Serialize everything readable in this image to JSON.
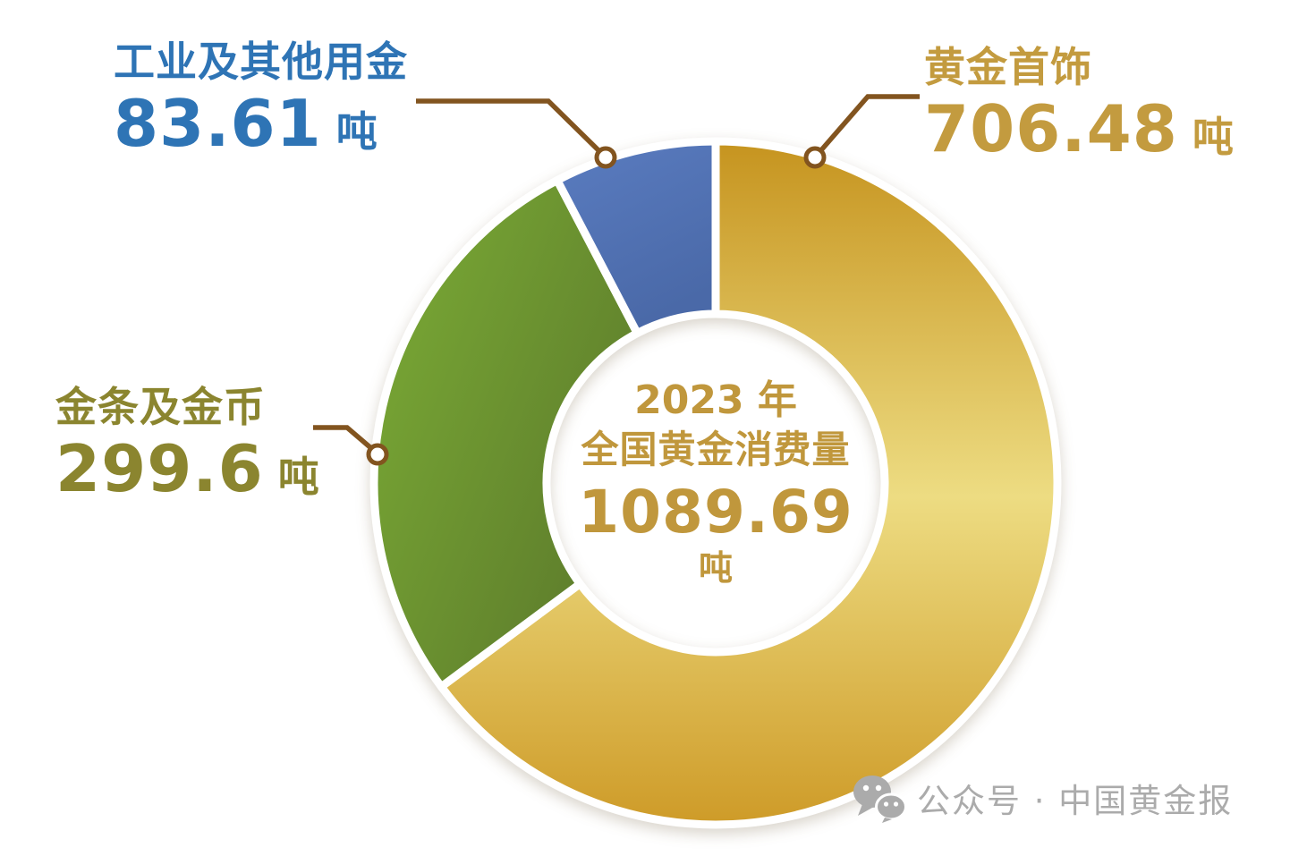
{
  "page": {
    "background": "#FFFFFF"
  },
  "chart_data": {
    "type": "pie",
    "variant": "donut",
    "title": "2023 年 全国黄金消费量 1089.69 吨",
    "total_value": 1089.69,
    "unit": "吨",
    "start_angle_deg": 0,
    "direction": "clockwise",
    "legend_position": "callouts",
    "separator_color": "#FFFFFF",
    "leader_line_color": "#82541F",
    "center_text_color": "#C0973C",
    "segments": [
      {
        "id": "jewelry",
        "label": "黄金首饰",
        "value": 706.48,
        "unit": "吨",
        "label_color": "#C39B3F",
        "gradient": [
          "#C6941F",
          "#EDDC82",
          "#CE9B28"
        ]
      },
      {
        "id": "bars-coins",
        "label": "金条及金币",
        "value": 299.6,
        "unit": "吨",
        "label_color": "#8B852F",
        "gradient": [
          "#7CAD36",
          "#5C7A2B"
        ]
      },
      {
        "id": "industrial",
        "label": "工业及其他用金",
        "value": 83.61,
        "unit": "吨",
        "label_color": "#2E74B5",
        "gradient": [
          "#5A7CC0",
          "#4A69A8"
        ]
      }
    ]
  },
  "callouts": {
    "industrial": {
      "title": "工业及其他用金",
      "value": "83.61",
      "unit": "吨"
    },
    "jewelry": {
      "title": "黄金首饰",
      "value": "706.48",
      "unit": "吨"
    },
    "bars_coins": {
      "title": "金条及金币",
      "value": "299.6",
      "unit": "吨"
    }
  },
  "center": {
    "line1": "2023 年",
    "line2": "全国黄金消费量",
    "value": "1089.69",
    "unit": "吨"
  },
  "watermark": {
    "icon": "wechat-icon",
    "text": "公众号 · 中国黄金报",
    "color": "#ABABAB"
  }
}
